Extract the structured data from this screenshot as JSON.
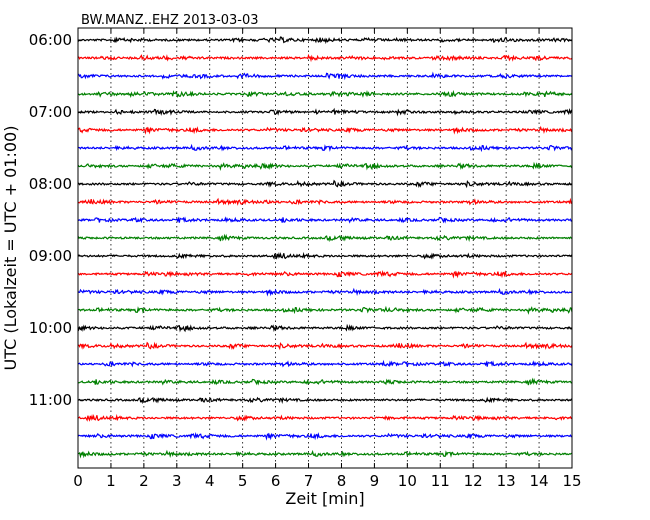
{
  "chart_data": {
    "type": "line",
    "title": "BW.MANZ..EHZ 2013-03-03",
    "xlabel": "Zeit  [min]",
    "ylabel": "UTC (Lokalzeit = UTC + 01:00)",
    "xlim": [
      0,
      15
    ],
    "x_ticks": [
      0,
      1,
      2,
      3,
      4,
      5,
      6,
      7,
      8,
      9,
      10,
      11,
      12,
      13,
      14,
      15
    ],
    "y_tick_labels": [
      "06:00",
      "07:00",
      "08:00",
      "09:00",
      "10:00",
      "11:00"
    ],
    "traces_per_hour": 4,
    "trace_start_times": [
      "06:00",
      "06:15",
      "06:30",
      "06:45",
      "07:00",
      "07:15",
      "07:30",
      "07:45",
      "08:00",
      "08:15",
      "08:30",
      "08:45",
      "09:00",
      "09:15",
      "09:30",
      "09:45",
      "10:00",
      "10:15",
      "10:30",
      "10:45",
      "11:00",
      "11:15",
      "11:30",
      "11:45"
    ],
    "trace_colors": [
      "#000000",
      "#ff0000",
      "#0000ff",
      "#008000"
    ],
    "grid": "vertical dotted at each minute",
    "series_note": "Each trace is a 15-minute continuous seismic record (noise); waveform amplitude is small relative to trace spacing."
  }
}
